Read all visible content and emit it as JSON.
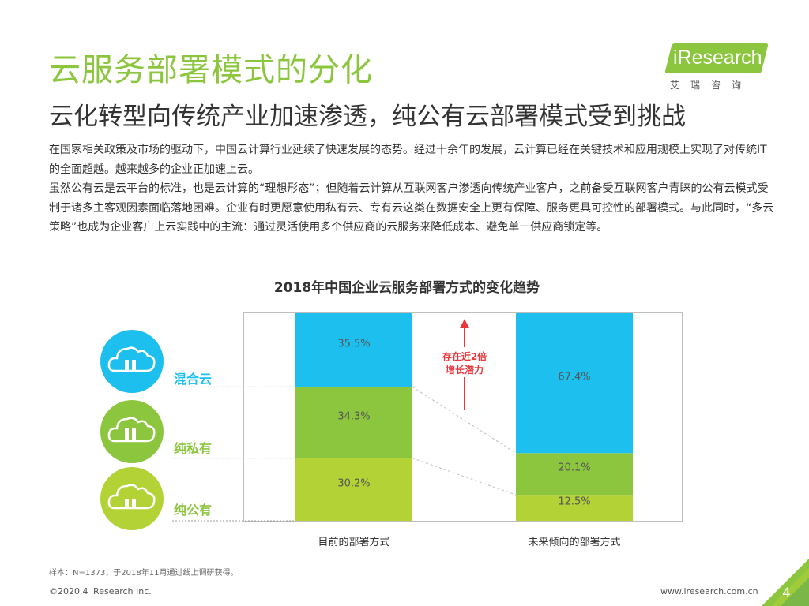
{
  "header": {
    "title": "云服务部署模式的分化",
    "subtitle": "云化转型向传统产业加速渗透，纯公有云部署模式受到挑战"
  },
  "logo": {
    "brand": "iResearch",
    "chinese": "艾瑞咨询"
  },
  "body": {
    "para1": "在国家相关政策及市场的驱动下，中国云计算行业延续了快速发展的态势。经过十余年的发展，云计算已经在关键技术和应用规模上实现了对传统IT的全面超越。越来越多的企业正加速上云。",
    "para2": "虽然公有云是云平台的标准，也是云计算的“理想形态”；但随着云计算从互联网客户渗透向传统产业客户，之前备受互联网客户青睐的公有云模式受制于诸多主客观因素面临落地困难。企业有时更愿意使用私有云、专有云这类在数据安全上更有保障、服务更具可控性的部署模式。与此同时，“多云策略”也成为企业客户上云实践中的主流：通过灵活使用多个供应商的云服务来降低成本、避免单一供应商锁定等。"
  },
  "chart_data": {
    "type": "bar",
    "stacked": true,
    "percent": true,
    "title": "2018年中国企业云服务部署方式的变化趋势",
    "categories": [
      "目前的部署方式",
      "未来倾向的部署方式"
    ],
    "series": [
      {
        "name": "纯公有",
        "values": [
          30.2,
          12.5
        ],
        "labels": [
          "30.2%",
          "12.5%"
        ],
        "color": "#b2d235"
      },
      {
        "name": "纯私有",
        "values": [
          34.3,
          20.1
        ],
        "labels": [
          "34.3%",
          "20.1%"
        ],
        "color": "#8cc63f"
      },
      {
        "name": "混合云",
        "values": [
          35.5,
          67.4
        ],
        "labels": [
          "35.5%",
          "67.4%"
        ],
        "color": "#1dbfef"
      }
    ],
    "ylim": [
      0,
      100
    ],
    "annotation": {
      "line1": "存在近2倍",
      "line2": "增长潜力",
      "color": "#e8383d"
    }
  },
  "legend": [
    {
      "name": "混合云",
      "circle": "#1dbfef",
      "text_color": "#1dbfef"
    },
    {
      "name": "纯私有",
      "circle": "#8cc63f",
      "text_color": "#8cc63f"
    },
    {
      "name": "纯公有",
      "circle": "#b2d235",
      "text_color": "#8cc63f"
    }
  ],
  "footnote": "样本：N=1373，于2018年11月通过线上调研获得。",
  "footer": {
    "copyright": "©2020.4 iResearch Inc.",
    "website": "www.iresearch.com.cn",
    "page": "4"
  }
}
